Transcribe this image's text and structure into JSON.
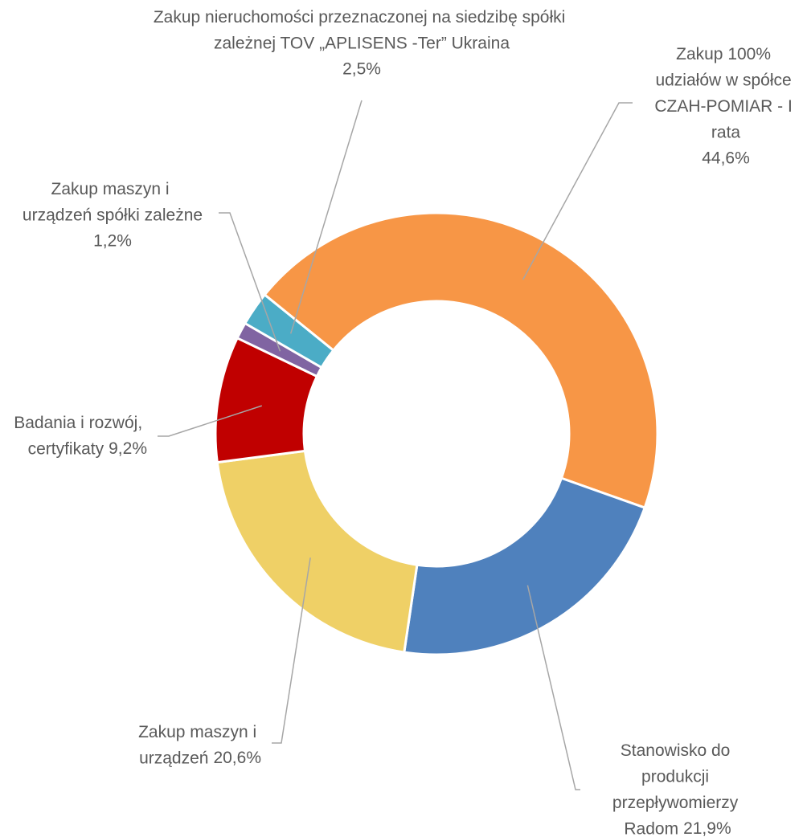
{
  "chart_data": {
    "type": "donut",
    "categories": [
      "Zakup 100% udziałów w spółce CZAH-POMIAR - I rata",
      "Stanowisko do produkcji przepływomierzy Radom",
      "Zakup maszyn i urządzeń",
      "Badania i rozwój, certyfikaty",
      "Zakup maszyn i urządzeń spółki zależne",
      "Zakup nieruchomości przeznaczonej na siedzibę spółki zależnej TOV „APLISENS -Ter” Ukraina"
    ],
    "values": [
      44.6,
      21.9,
      20.6,
      9.2,
      1.2,
      2.5
    ],
    "value_labels": [
      "44,6%",
      "21,9%",
      "20,6%",
      "9,2%",
      "1,2%",
      "2,5%"
    ],
    "colors": [
      "#f79646",
      "#4f81bd",
      "#efd066",
      "#c00000",
      "#8064a2",
      "#4bacc6"
    ]
  }
}
